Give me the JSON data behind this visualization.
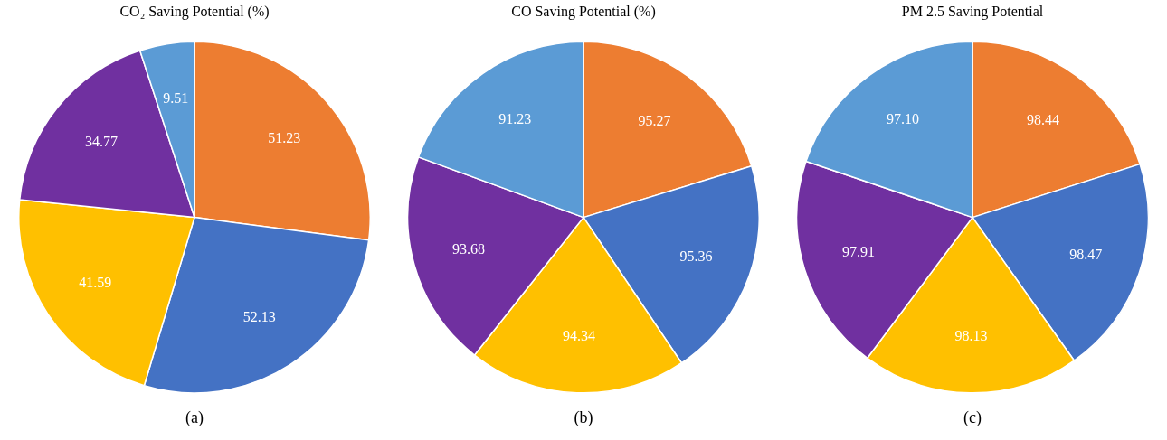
{
  "chart_data": [
    {
      "type": "pie",
      "title": "CO₂ Saving Potential (%)",
      "categories": [
        null,
        null,
        null,
        null,
        null
      ],
      "values": [
        51.23,
        52.13,
        41.59,
        34.77,
        9.51
      ],
      "colors": [
        "#ed7d31",
        "#4472c4",
        "#ffc000",
        "#7030a0",
        "#5b9bd5"
      ],
      "data_labels": true,
      "legend": false,
      "annotations": [
        "(a)"
      ]
    },
    {
      "type": "pie",
      "title": "CO Saving Potential (%)",
      "categories": [
        null,
        null,
        null,
        null,
        null
      ],
      "values": [
        95.27,
        95.36,
        94.34,
        93.68,
        91.23
      ],
      "colors": [
        "#ed7d31",
        "#4472c4",
        "#ffc000",
        "#7030a0",
        "#5b9bd5"
      ],
      "data_labels": true,
      "legend": false,
      "annotations": [
        "(b)"
      ]
    },
    {
      "type": "pie",
      "title": "PM 2.5 Saving Potential",
      "categories": [
        null,
        null,
        null,
        null,
        null
      ],
      "values": [
        98.44,
        98.47,
        98.13,
        97.91,
        97.1
      ],
      "value_labels": [
        "98.44",
        "98.47",
        "98.13",
        "97.91",
        "97.10"
      ],
      "colors": [
        "#ed7d31",
        "#4472c4",
        "#ffc000",
        "#7030a0",
        "#5b9bd5"
      ],
      "legend": false,
      "annotations": [
        "(c)"
      ]
    }
  ]
}
